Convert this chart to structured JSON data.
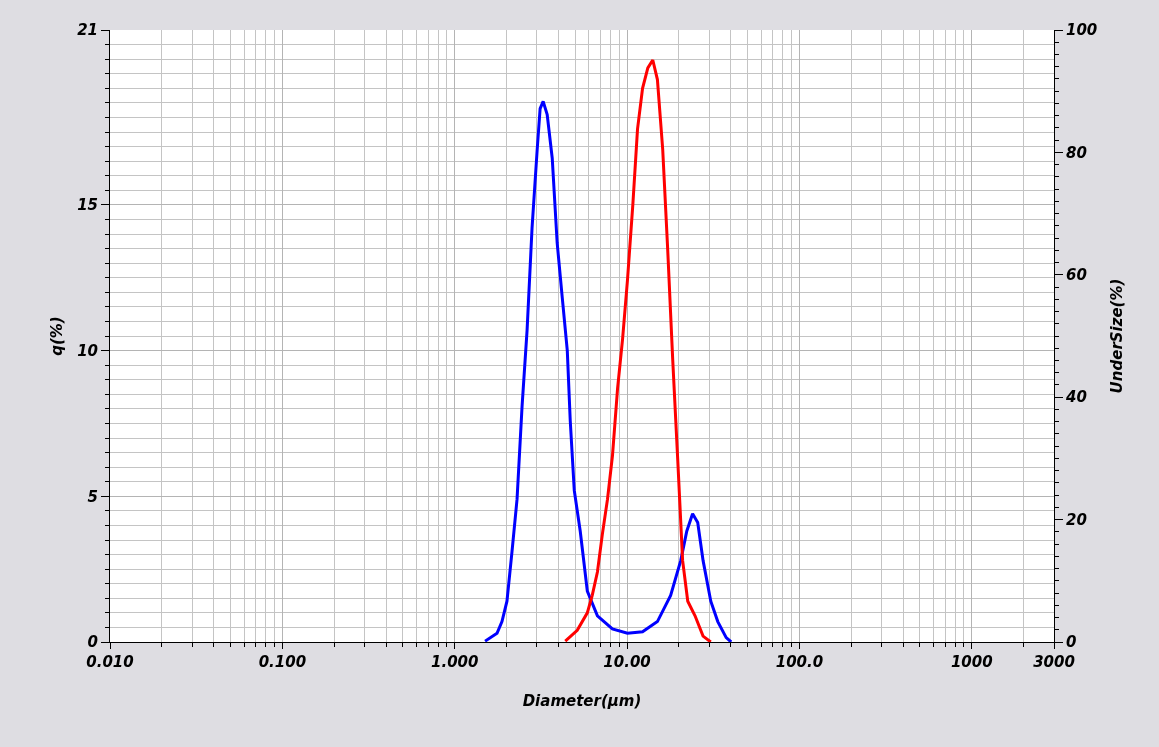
{
  "chart_data": {
    "type": "line",
    "xlabel": "Diameter(μm)",
    "ylabel": "q(%)",
    "y2label": "UnderSize(%)",
    "log": "x",
    "grid": true,
    "marker": "none",
    "line_style": "solid",
    "xlim": [
      0.01,
      3000
    ],
    "xticks": [
      {
        "value": 0.01,
        "label": "0.010"
      },
      {
        "value": 0.1,
        "label": "0.100"
      },
      {
        "value": 1,
        "label": "1.000"
      },
      {
        "value": 10,
        "label": "10.00"
      },
      {
        "value": 100,
        "label": "100.0"
      },
      1000,
      3000
    ],
    "ylim": [
      0,
      21
    ],
    "yticks": [
      0,
      5,
      10,
      15,
      21
    ],
    "y2lim": [
      0,
      100
    ],
    "y2ticks": [
      0,
      20,
      40,
      60,
      80,
      100
    ],
    "series": [
      {
        "color": "#0000ff",
        "x": [
          1.5,
          1.76,
          1.88,
          2.01,
          2.15,
          2.3,
          2.46,
          2.63,
          2.81,
          3.01,
          3.13,
          3.26,
          3.44,
          3.68,
          3.93,
          4.21,
          4.5,
          4.68,
          4.94,
          5.35,
          5.88,
          6.73,
          8.22,
          10.05,
          12.3,
          15.0,
          17.9,
          20.5,
          22.2,
          24.0,
          25.7,
          27.6,
          30.6,
          33.6,
          37.6,
          40.2
        ],
        "values": [
          0.03,
          0.3,
          0.7,
          1.4,
          3.1,
          4.9,
          8.1,
          10.7,
          14.2,
          16.9,
          18.3,
          18.55,
          18.1,
          16.6,
          13.7,
          11.8,
          10.0,
          7.6,
          5.2,
          3.8,
          1.75,
          0.9,
          0.45,
          0.3,
          0.35,
          0.7,
          1.6,
          2.8,
          3.8,
          4.4,
          4.1,
          2.8,
          1.4,
          0.7,
          0.15,
          0
        ]
      },
      {
        "color": "#ff0000",
        "x": [
          4.38,
          5.14,
          5.88,
          6.28,
          6.73,
          7.19,
          7.7,
          8.23,
          8.81,
          9.42,
          10.05,
          10.8,
          11.5,
          12.3,
          13.2,
          14.1,
          15.0,
          16.1,
          17.2,
          18.4,
          19.7,
          21.0,
          22.5,
          24.8,
          27.6,
          30.6
        ],
        "values": [
          0.03,
          0.4,
          1.0,
          1.6,
          2.4,
          3.7,
          4.9,
          6.4,
          8.7,
          10.4,
          12.4,
          15.0,
          17.6,
          19.0,
          19.7,
          19.97,
          19.3,
          16.9,
          13.5,
          9.7,
          6.2,
          2.8,
          1.4,
          0.9,
          0.2,
          0
        ]
      }
    ]
  }
}
